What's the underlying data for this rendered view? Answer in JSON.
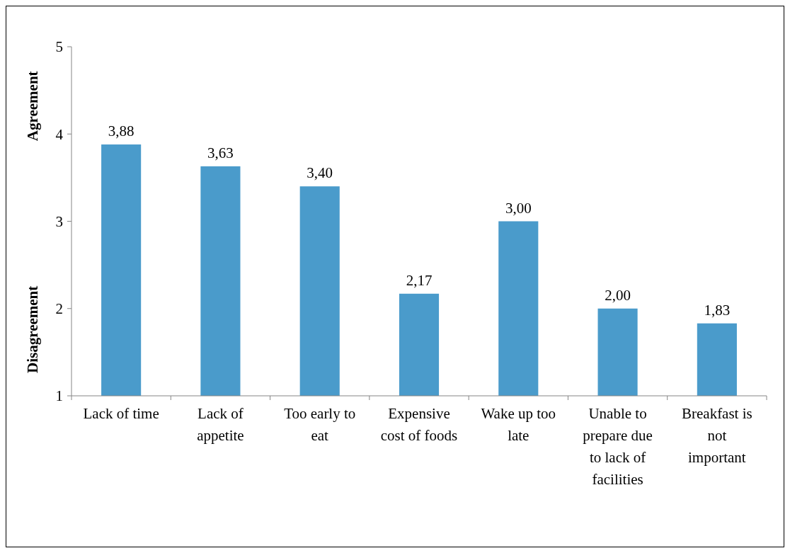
{
  "chart_data": {
    "type": "bar",
    "categories": [
      "Lack of time",
      "Lack of appetite",
      "Too early to eat",
      "Expensive cost of foods",
      "Wake up too late",
      "Unable to prepare due to lack of facilities",
      "Breakfast is not important"
    ],
    "values": [
      3.88,
      3.63,
      3.4,
      2.17,
      3.0,
      2.0,
      1.83
    ],
    "value_labels": [
      "3,88",
      "3,63",
      "3,40",
      "2,17",
      "3,00",
      "2,00",
      "1,83"
    ],
    "color": "#4a9bcb",
    "ylim": [
      1,
      5
    ],
    "yticks": [
      1,
      2,
      3,
      4,
      5
    ],
    "annotations": [
      "Agreement",
      "Disagreement"
    ],
    "grid": false
  }
}
